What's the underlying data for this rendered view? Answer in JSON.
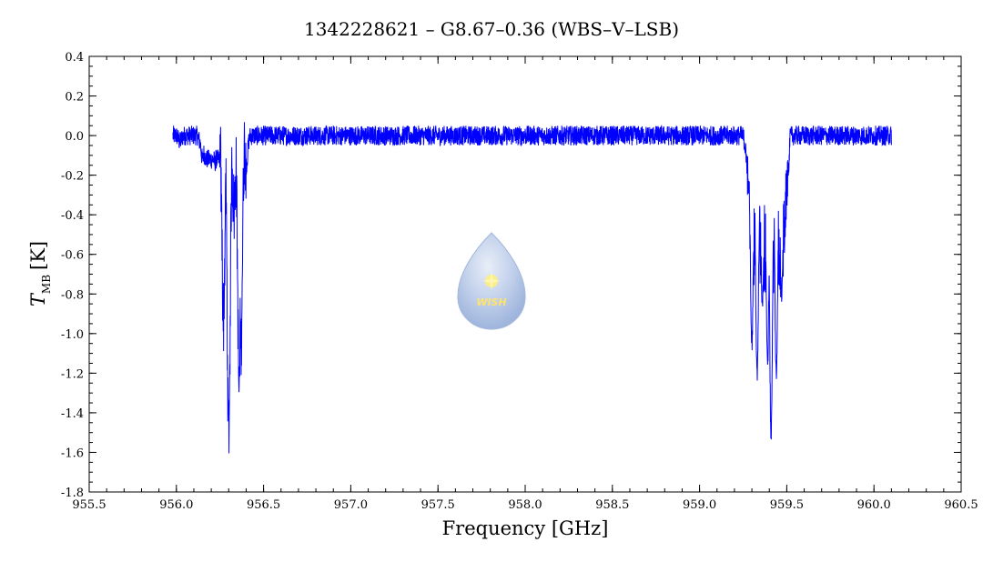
{
  "chart_data": {
    "type": "line",
    "title": "1342228621 – G8.67–0.36 (WBS–V–LSB)",
    "xlabel": "Frequency [GHz]",
    "ylabel_main": "T",
    "ylabel_sub": "MB",
    "ylabel_unit": "[K]",
    "xlim": [
      955.5,
      960.5
    ],
    "ylim": [
      -1.8,
      0.4
    ],
    "x_ticks": [
      955.5,
      956.0,
      956.5,
      957.0,
      957.5,
      958.0,
      958.5,
      959.0,
      959.5,
      960.0,
      960.5
    ],
    "x_tick_labels": [
      "955.5",
      "956.0",
      "956.5",
      "957.0",
      "957.5",
      "958.0",
      "958.5",
      "959.0",
      "959.5",
      "960.0",
      "960.5"
    ],
    "y_ticks": [
      0.4,
      0.2,
      0.0,
      -0.2,
      -0.4,
      -0.6,
      -0.8,
      -1.0,
      -1.2,
      -1.4,
      -1.6,
      -1.8
    ],
    "y_tick_labels": [
      "0.4",
      "0.2",
      "0.0",
      "-0.2",
      "-0.4",
      "-0.6",
      "-0.8",
      "-1.0",
      "-1.2",
      "-1.4",
      "-1.6",
      "-1.8"
    ],
    "grid": false,
    "series": [
      {
        "color": "#0000ff",
        "x_range": [
          955.98,
          960.1
        ],
        "baseline": 0.0,
        "noise_amplitude": 0.05,
        "features": [
          {
            "x": 956.02,
            "depth": -0.03
          },
          {
            "x": 956.15,
            "depth": -0.12
          },
          {
            "x": 956.22,
            "depth": -0.14
          },
          {
            "x": 956.27,
            "depth": -0.9
          },
          {
            "x": 956.3,
            "depth": -1.52
          },
          {
            "x": 956.33,
            "depth": -0.35
          },
          {
            "x": 956.36,
            "depth": -1.28
          },
          {
            "x": 956.37,
            "depth": -1.05
          },
          {
            "x": 956.4,
            "depth": -0.15
          },
          {
            "x": 959.27,
            "depth": -0.1
          },
          {
            "x": 959.3,
            "depth": -1.05
          },
          {
            "x": 959.33,
            "depth": -1.22
          },
          {
            "x": 959.36,
            "depth": -0.85
          },
          {
            "x": 959.39,
            "depth": -1.15
          },
          {
            "x": 959.41,
            "depth": -1.52
          },
          {
            "x": 959.44,
            "depth": -1.2
          },
          {
            "x": 959.47,
            "depth": -0.8
          },
          {
            "x": 959.5,
            "depth": -0.2
          }
        ]
      }
    ]
  },
  "watermark": {
    "text": "WISH",
    "color": "#aec3e6"
  }
}
